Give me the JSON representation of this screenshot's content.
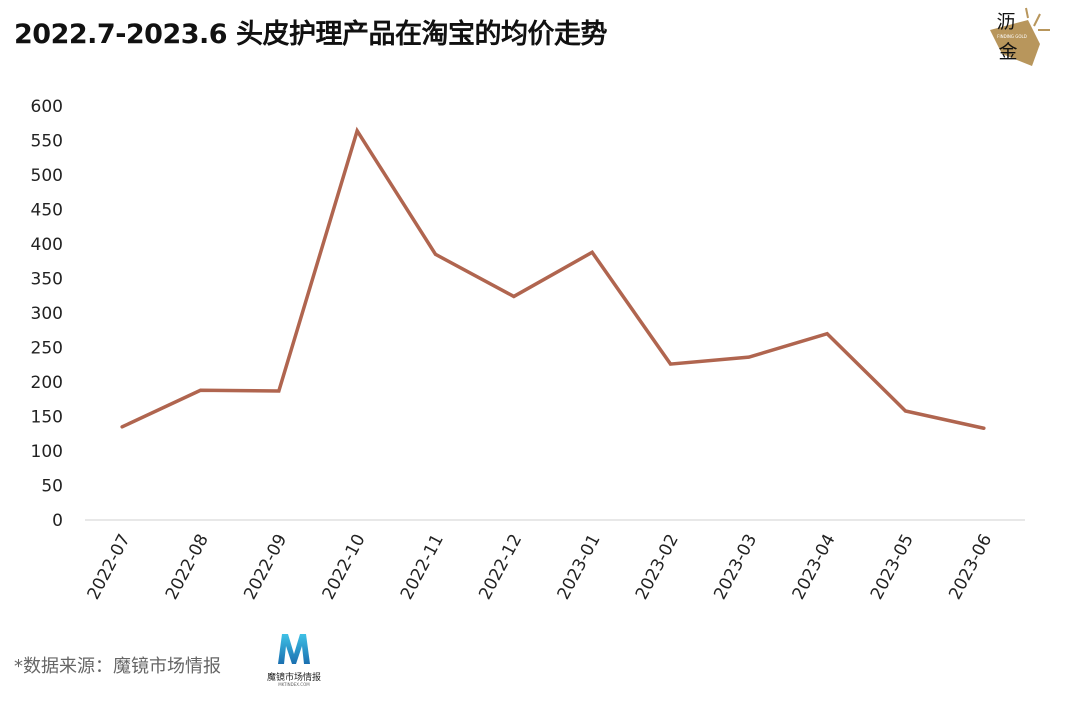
{
  "chart_data": {
    "type": "line",
    "title": "2022.7-2023.6 头皮护理产品在淘宝的均价走势",
    "xlabel": "",
    "ylabel": "",
    "categories": [
      "2022-07",
      "2022-08",
      "2022-09",
      "2022-10",
      "2022-11",
      "2022-12",
      "2023-01",
      "2023-02",
      "2023-03",
      "2023-04",
      "2023-05",
      "2023-06"
    ],
    "series": [
      {
        "values": [
          135,
          188,
          187,
          564,
          385,
          324,
          388,
          226,
          236,
          270,
          158,
          133
        ],
        "color": "#b0654f"
      }
    ],
    "ylim": [
      0,
      600
    ],
    "yticks": [
      0,
      50,
      100,
      150,
      200,
      250,
      300,
      350,
      400,
      450,
      500,
      550,
      600
    ],
    "grid": false,
    "legend": "none"
  },
  "footer": {
    "source": "*数据来源：魔镜市场情报",
    "logo_text": "魔镜市场情报",
    "logo_sub": "MKTINDEX.COM"
  },
  "brand_logo": {
    "text_top": "沥",
    "text_bottom": "金",
    "tagline": "FINDING GOLD",
    "color": "#b8965c"
  }
}
